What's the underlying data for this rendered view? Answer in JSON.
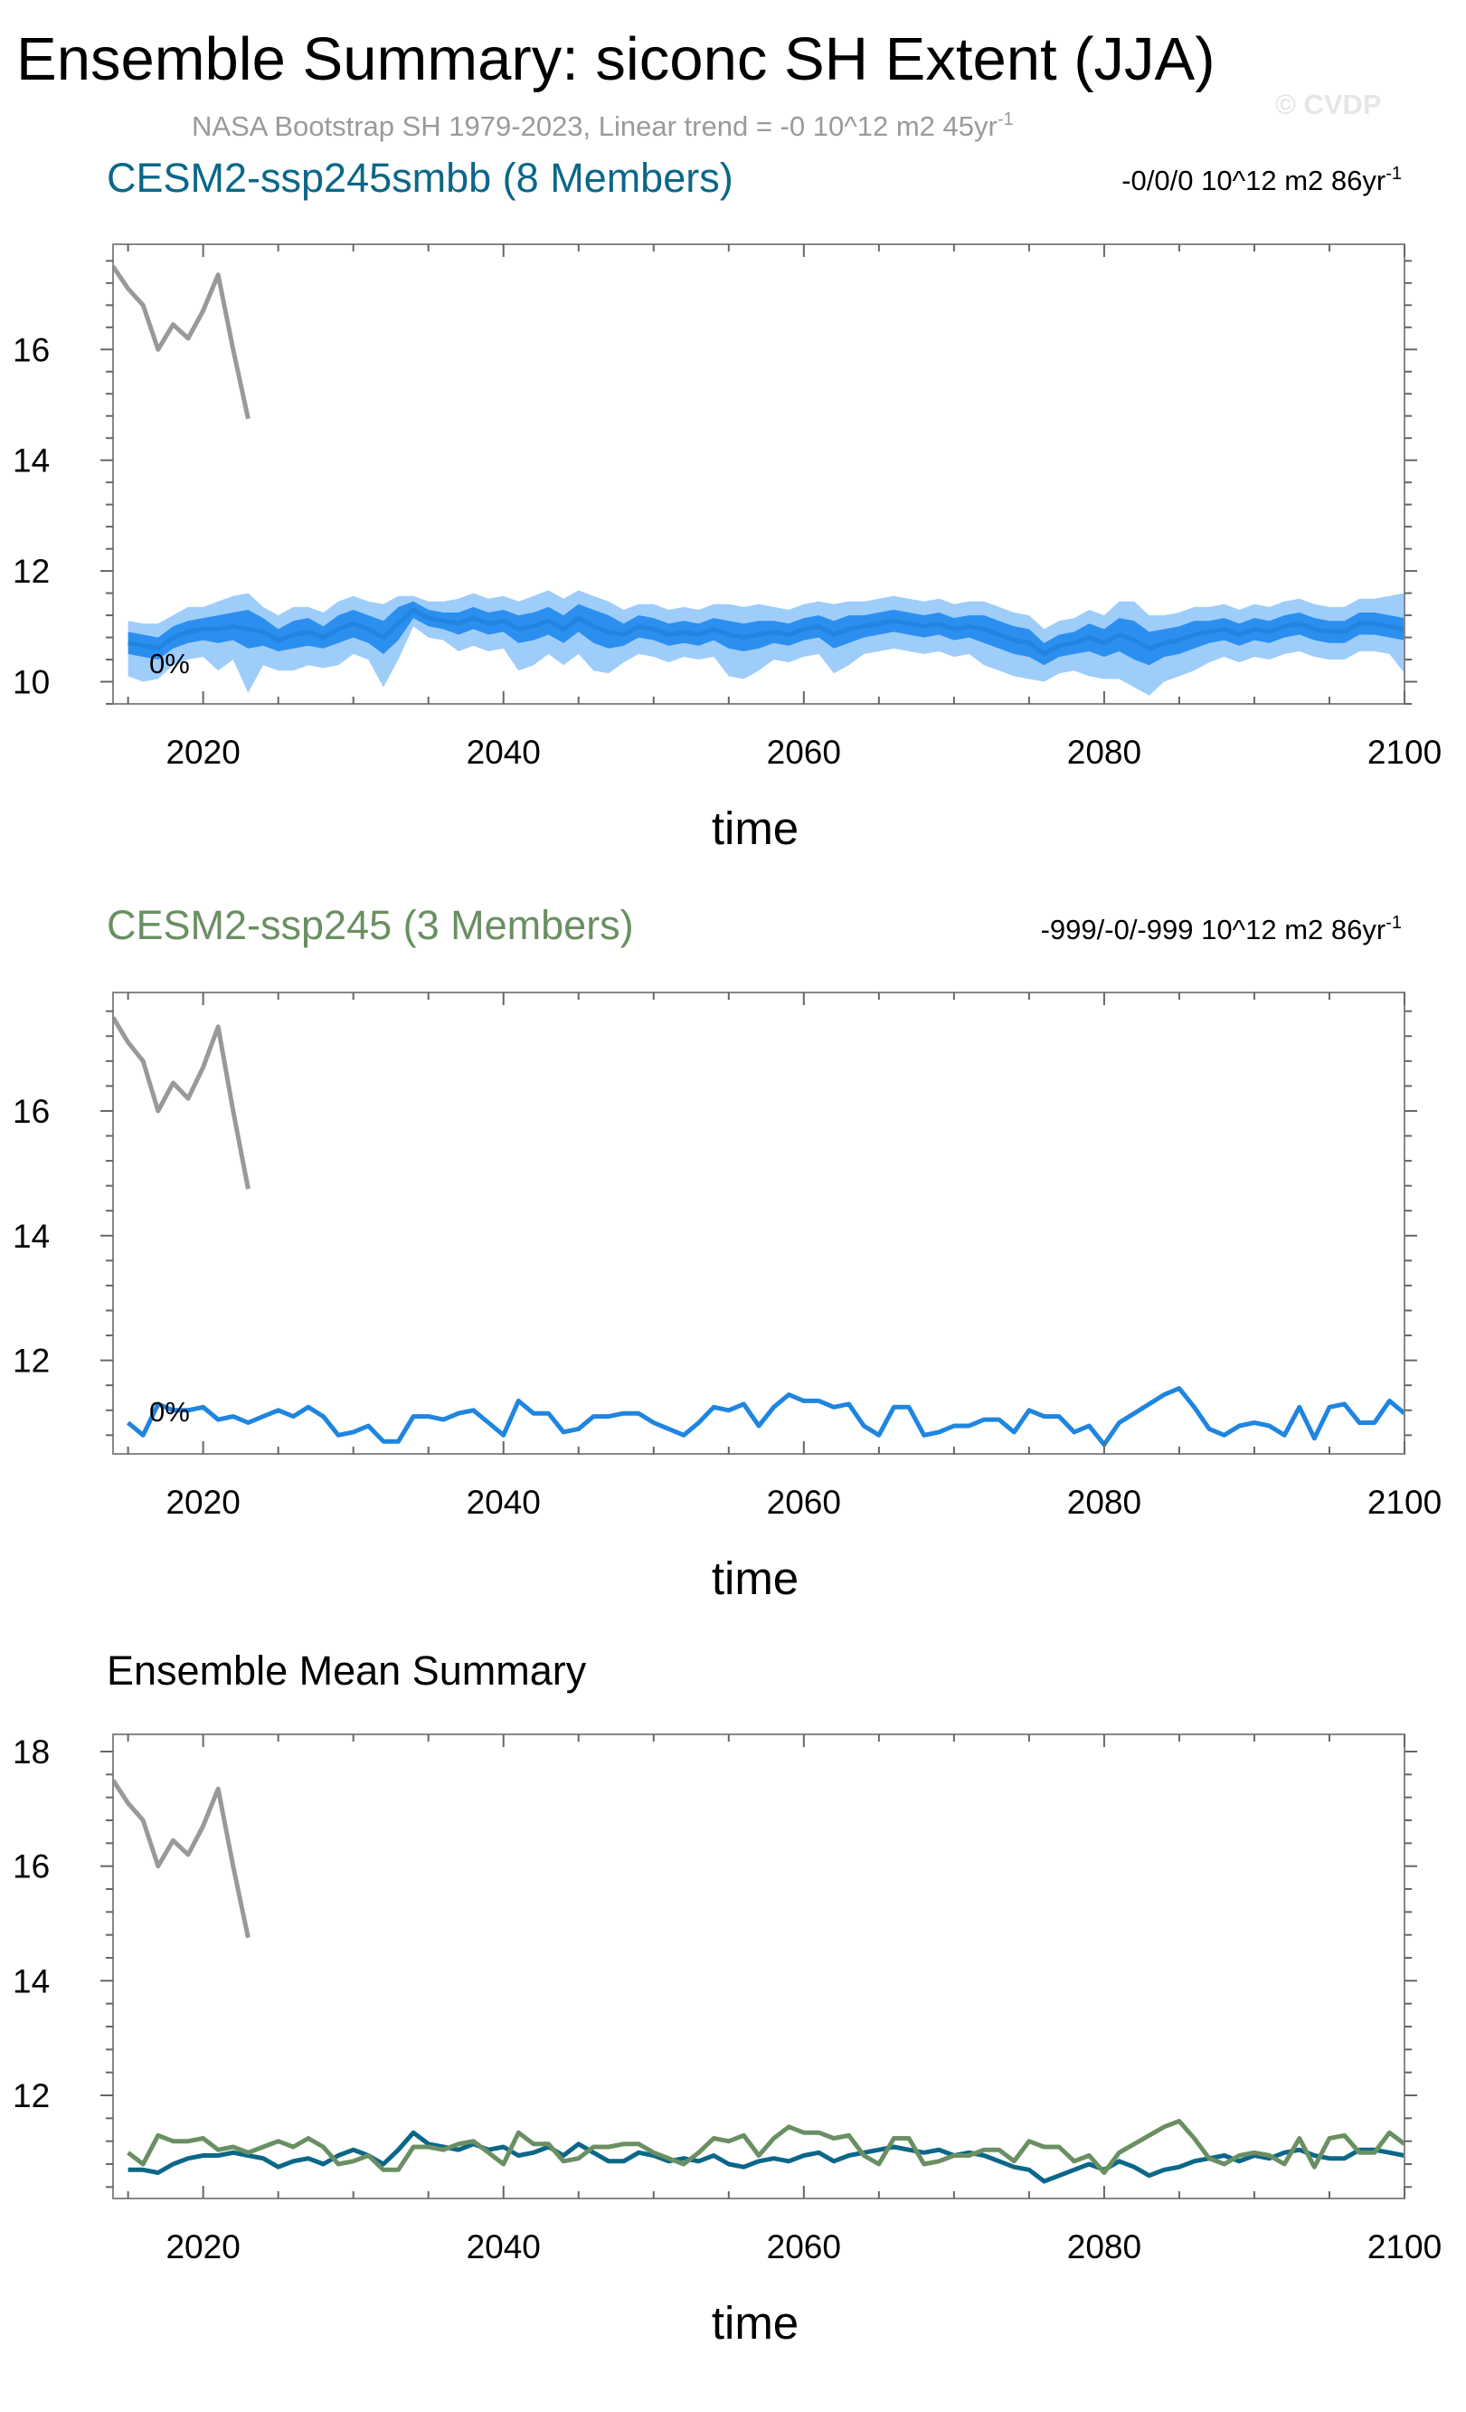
{
  "title": "Ensemble Summary: siconc SH Extent (JJA)",
  "subtitle": {
    "text": "NASA Bootstrap SH 1979-2023, Linear trend = -0 10^12 m2 45yr",
    "sup": "-1"
  },
  "watermark": "© CVDP",
  "colors": {
    "obs": "#999999",
    "model1": "#0b6788",
    "model2": "#6a8f62",
    "mean_line": "#1f85e0",
    "band_inner": "#2b8ff0",
    "band_outer": "#9fcdfa"
  },
  "chart_data": [
    {
      "type": "line",
      "title": "CESM2-ssp245smbb (8 Members)",
      "trend_label": {
        "text": "-0/0/0 10^12 m2 86yr",
        "sup": "-1"
      },
      "xlabel": "time",
      "xlim": [
        2014,
        2100
      ],
      "ylim": [
        9.6,
        17.9
      ],
      "xticks": [
        "2020",
        "2040",
        "2060",
        "2080",
        "2100"
      ],
      "yticks": [
        "10",
        "12",
        "14",
        "16"
      ],
      "annotation": "0%",
      "obs": {
        "x": [
          2014,
          2015,
          2016,
          2017,
          2018,
          2019,
          2020,
          2021,
          2022,
          2023
        ],
        "values": [
          17.5,
          17.1,
          16.8,
          16.0,
          16.45,
          16.2,
          16.7,
          17.35,
          16.0,
          14.75
        ]
      },
      "ensemble": {
        "x": [
          2015,
          2016,
          2017,
          2018,
          2019,
          2020,
          2021,
          2022,
          2023,
          2024,
          2025,
          2026,
          2027,
          2028,
          2029,
          2030,
          2031,
          2032,
          2033,
          2034,
          2035,
          2036,
          2037,
          2038,
          2039,
          2040,
          2041,
          2042,
          2043,
          2044,
          2045,
          2046,
          2047,
          2048,
          2049,
          2050,
          2051,
          2052,
          2053,
          2054,
          2055,
          2056,
          2057,
          2058,
          2059,
          2060,
          2061,
          2062,
          2063,
          2064,
          2065,
          2066,
          2067,
          2068,
          2069,
          2070,
          2071,
          2072,
          2073,
          2074,
          2075,
          2076,
          2077,
          2078,
          2079,
          2080,
          2081,
          2082,
          2083,
          2084,
          2085,
          2086,
          2087,
          2088,
          2089,
          2090,
          2091,
          2092,
          2093,
          2094,
          2095,
          2096,
          2097,
          2098,
          2099,
          2100
        ],
        "mean": [
          10.7,
          10.65,
          10.6,
          10.8,
          10.9,
          10.95,
          10.95,
          11.0,
          10.95,
          10.9,
          10.75,
          10.85,
          10.9,
          10.8,
          10.95,
          11.05,
          10.95,
          10.8,
          11.05,
          11.3,
          11.15,
          11.1,
          11.05,
          11.15,
          11.05,
          11.1,
          10.95,
          11.0,
          11.1,
          10.95,
          11.15,
          11.0,
          10.9,
          10.85,
          11.0,
          10.95,
          10.85,
          10.9,
          10.85,
          10.95,
          10.85,
          10.8,
          10.85,
          10.9,
          10.85,
          10.95,
          11.0,
          10.85,
          10.95,
          11.0,
          11.05,
          11.1,
          11.05,
          11.0,
          11.05,
          10.95,
          11.0,
          10.95,
          10.85,
          10.75,
          10.7,
          10.5,
          10.65,
          10.7,
          10.8,
          10.7,
          10.85,
          10.75,
          10.6,
          10.7,
          10.75,
          10.85,
          10.9,
          10.95,
          10.85,
          10.95,
          10.9,
          11.0,
          11.05,
          10.95,
          10.9,
          10.9,
          11.05,
          11.05,
          11.0,
          10.95
        ],
        "band_inner": {
          "lower": [
            10.5,
            10.45,
            10.4,
            10.6,
            10.7,
            10.75,
            10.7,
            10.75,
            10.6,
            10.65,
            10.55,
            10.6,
            10.65,
            10.6,
            10.7,
            10.8,
            10.7,
            10.5,
            10.75,
            11.15,
            11.0,
            10.95,
            10.85,
            10.95,
            10.85,
            10.9,
            10.7,
            10.75,
            10.85,
            10.7,
            10.9,
            10.7,
            10.6,
            10.65,
            10.8,
            10.75,
            10.65,
            10.7,
            10.65,
            10.75,
            10.6,
            10.55,
            10.6,
            10.7,
            10.65,
            10.75,
            10.8,
            10.6,
            10.7,
            10.8,
            10.85,
            10.9,
            10.85,
            10.8,
            10.85,
            10.75,
            10.8,
            10.7,
            10.6,
            10.5,
            10.45,
            10.3,
            10.45,
            10.5,
            10.55,
            10.45,
            10.55,
            10.4,
            10.3,
            10.45,
            10.5,
            10.6,
            10.7,
            10.75,
            10.65,
            10.75,
            10.7,
            10.8,
            10.85,
            10.75,
            10.7,
            10.7,
            10.85,
            10.85,
            10.8,
            10.75
          ],
          "upper": [
            10.9,
            10.85,
            10.8,
            11.0,
            11.1,
            11.15,
            11.2,
            11.25,
            11.3,
            11.15,
            10.95,
            11.1,
            11.15,
            11.0,
            11.2,
            11.3,
            11.2,
            11.1,
            11.35,
            11.45,
            11.3,
            11.25,
            11.25,
            11.35,
            11.25,
            11.3,
            11.2,
            11.25,
            11.35,
            11.2,
            11.4,
            11.3,
            11.2,
            11.05,
            11.2,
            11.15,
            11.05,
            11.1,
            11.05,
            11.15,
            11.1,
            11.05,
            11.1,
            11.1,
            11.05,
            11.15,
            11.2,
            11.1,
            11.2,
            11.2,
            11.25,
            11.3,
            11.25,
            11.2,
            11.25,
            11.15,
            11.2,
            11.2,
            11.1,
            11.0,
            10.95,
            10.7,
            10.85,
            10.9,
            11.05,
            10.95,
            11.15,
            11.1,
            10.9,
            10.95,
            11.0,
            11.1,
            11.1,
            11.15,
            11.05,
            11.15,
            11.1,
            11.2,
            11.25,
            11.15,
            11.1,
            11.1,
            11.25,
            11.25,
            11.2,
            11.15
          ]
        },
        "band_outer": {
          "lower": [
            10.1,
            10.0,
            10.05,
            10.3,
            10.4,
            10.45,
            10.2,
            10.4,
            9.8,
            10.3,
            10.2,
            10.2,
            10.3,
            10.25,
            10.3,
            10.5,
            10.4,
            9.9,
            10.4,
            11.0,
            10.8,
            10.75,
            10.55,
            10.65,
            10.55,
            10.6,
            10.2,
            10.3,
            10.5,
            10.3,
            10.5,
            10.2,
            10.15,
            10.35,
            10.5,
            10.45,
            10.35,
            10.45,
            10.4,
            10.45,
            10.1,
            10.05,
            10.2,
            10.4,
            10.35,
            10.45,
            10.5,
            10.15,
            10.3,
            10.5,
            10.55,
            10.6,
            10.55,
            10.5,
            10.55,
            10.45,
            10.5,
            10.3,
            10.2,
            10.1,
            10.05,
            10.0,
            10.15,
            10.2,
            10.1,
            10.05,
            10.05,
            9.9,
            9.75,
            10.0,
            10.1,
            10.2,
            10.35,
            10.45,
            10.35,
            10.45,
            10.4,
            10.5,
            10.55,
            10.45,
            10.4,
            10.4,
            10.55,
            10.55,
            10.5,
            10.15
          ],
          "upper": [
            11.1,
            11.05,
            11.05,
            11.2,
            11.35,
            11.35,
            11.45,
            11.55,
            11.6,
            11.35,
            11.2,
            11.35,
            11.35,
            11.25,
            11.45,
            11.55,
            11.45,
            11.4,
            11.55,
            11.55,
            11.45,
            11.45,
            11.5,
            11.6,
            11.5,
            11.55,
            11.45,
            11.55,
            11.65,
            11.5,
            11.65,
            11.55,
            11.45,
            11.3,
            11.4,
            11.4,
            11.3,
            11.35,
            11.3,
            11.4,
            11.4,
            11.35,
            11.4,
            11.35,
            11.3,
            11.4,
            11.45,
            11.4,
            11.45,
            11.45,
            11.5,
            11.55,
            11.5,
            11.45,
            11.5,
            11.4,
            11.45,
            11.45,
            11.35,
            11.25,
            11.2,
            10.95,
            11.1,
            11.15,
            11.3,
            11.2,
            11.45,
            11.45,
            11.2,
            11.2,
            11.25,
            11.35,
            11.35,
            11.4,
            11.3,
            11.4,
            11.35,
            11.45,
            11.5,
            11.4,
            11.35,
            11.35,
            11.5,
            11.5,
            11.55,
            11.6
          ]
        }
      }
    },
    {
      "type": "line",
      "title": "CESM2-ssp245 (3 Members)",
      "trend_label": {
        "text": "-999/-0/-999 10^12 m2 86yr",
        "sup": "-1"
      },
      "xlabel": "time",
      "xlim": [
        2014,
        2100
      ],
      "ylim": [
        10.5,
        17.9
      ],
      "xticks": [
        "2020",
        "2040",
        "2060",
        "2080",
        "2100"
      ],
      "yticks": [
        "12",
        "14",
        "16"
      ],
      "annotation": "0%",
      "obs": {
        "x": [
          2014,
          2015,
          2016,
          2017,
          2018,
          2019,
          2020,
          2021,
          2022,
          2023
        ],
        "values": [
          17.5,
          17.1,
          16.8,
          16.0,
          16.45,
          16.2,
          16.7,
          17.35,
          16.0,
          14.75
        ]
      },
      "member": {
        "x": [
          2015,
          2016,
          2017,
          2018,
          2019,
          2020,
          2021,
          2022,
          2023,
          2024,
          2025,
          2026,
          2027,
          2028,
          2029,
          2030,
          2031,
          2032,
          2033,
          2034,
          2035,
          2036,
          2037,
          2038,
          2039,
          2040,
          2041,
          2042,
          2043,
          2044,
          2045,
          2046,
          2047,
          2048,
          2049,
          2050,
          2051,
          2052,
          2053,
          2054,
          2055,
          2056,
          2057,
          2058,
          2059,
          2060,
          2061,
          2062,
          2063,
          2064,
          2065,
          2066,
          2067,
          2068,
          2069,
          2070,
          2071,
          2072,
          2073,
          2074,
          2075,
          2076,
          2077,
          2078,
          2079,
          2080,
          2081,
          2082,
          2083,
          2084,
          2085,
          2086,
          2087,
          2088,
          2089,
          2090,
          2091,
          2092,
          2093,
          2094,
          2095,
          2096,
          2097,
          2098,
          2099,
          2100
        ],
        "values": [
          11.0,
          10.8,
          11.3,
          11.2,
          11.2,
          11.25,
          11.05,
          11.1,
          11.0,
          11.1,
          11.2,
          11.1,
          11.25,
          11.1,
          10.8,
          10.85,
          10.95,
          10.7,
          10.7,
          11.1,
          11.1,
          11.05,
          11.15,
          11.2,
          11.0,
          10.8,
          11.35,
          11.15,
          11.15,
          10.85,
          10.9,
          11.1,
          11.1,
          11.15,
          11.15,
          11.0,
          10.9,
          10.8,
          11.0,
          11.25,
          11.2,
          11.3,
          10.95,
          11.25,
          11.45,
          11.35,
          11.35,
          11.25,
          11.3,
          10.95,
          10.8,
          11.25,
          11.25,
          10.8,
          10.85,
          10.95,
          10.95,
          11.05,
          11.05,
          10.85,
          11.2,
          11.1,
          11.1,
          10.85,
          10.95,
          10.65,
          11.0,
          11.15,
          11.3,
          11.45,
          11.55,
          11.25,
          10.9,
          10.8,
          10.95,
          11.0,
          10.95,
          10.8,
          11.25,
          10.75,
          11.25,
          11.3,
          11.0,
          11.0,
          11.35,
          11.15
        ]
      }
    },
    {
      "type": "line",
      "title": "Ensemble Mean Summary",
      "xlabel": "time",
      "xlim": [
        2014,
        2100
      ],
      "ylim": [
        10.2,
        18.3
      ],
      "xticks": [
        "2020",
        "2040",
        "2060",
        "2080",
        "2100"
      ],
      "yticks": [
        "12",
        "14",
        "16",
        "18"
      ],
      "series": [
        {
          "name": "CESM2-ssp245smbb",
          "values": [
            10.7,
            10.7,
            10.65,
            10.8,
            10.9,
            10.95,
            10.95,
            11.0,
            10.95,
            10.9,
            10.75,
            10.85,
            10.9,
            10.8,
            10.95,
            11.05,
            10.95,
            10.8,
            11.05,
            11.35,
            11.15,
            11.1,
            11.05,
            11.15,
            11.05,
            11.1,
            10.95,
            11.0,
            11.1,
            10.95,
            11.15,
            11.0,
            10.85,
            10.85,
            11.0,
            10.95,
            10.85,
            10.9,
            10.85,
            10.95,
            10.8,
            10.75,
            10.85,
            10.9,
            10.85,
            10.95,
            11.0,
            10.85,
            10.95,
            11.0,
            11.05,
            11.1,
            11.05,
            11.0,
            11.05,
            10.95,
            11.0,
            10.95,
            10.85,
            10.75,
            10.7,
            10.5,
            10.6,
            10.7,
            10.8,
            10.7,
            10.85,
            10.75,
            10.6,
            10.7,
            10.75,
            10.85,
            10.9,
            10.95,
            10.85,
            10.95,
            10.9,
            11.0,
            11.05,
            10.95,
            10.9,
            10.9,
            11.05,
            11.05,
            11.0,
            10.95
          ]
        },
        {
          "name": "CESM2-ssp245",
          "values": [
            11.0,
            10.8,
            11.3,
            11.2,
            11.2,
            11.25,
            11.05,
            11.1,
            11.0,
            11.1,
            11.2,
            11.1,
            11.25,
            11.1,
            10.8,
            10.85,
            10.95,
            10.7,
            10.7,
            11.1,
            11.1,
            11.05,
            11.15,
            11.2,
            11.0,
            10.8,
            11.35,
            11.15,
            11.15,
            10.85,
            10.9,
            11.1,
            11.1,
            11.15,
            11.15,
            11.0,
            10.9,
            10.8,
            11.0,
            11.25,
            11.2,
            11.3,
            10.95,
            11.25,
            11.45,
            11.35,
            11.35,
            11.25,
            11.3,
            10.95,
            10.8,
            11.25,
            11.25,
            10.8,
            10.85,
            10.95,
            10.95,
            11.05,
            11.05,
            10.85,
            11.2,
            11.1,
            11.1,
            10.85,
            10.95,
            10.65,
            11.0,
            11.15,
            11.3,
            11.45,
            11.55,
            11.25,
            10.9,
            10.8,
            10.95,
            11.0,
            10.95,
            10.8,
            11.25,
            10.75,
            11.25,
            11.3,
            11.0,
            11.0,
            11.35,
            11.15
          ]
        }
      ],
      "obs": {
        "x": [
          2014,
          2015,
          2016,
          2017,
          2018,
          2019,
          2020,
          2021,
          2022,
          2023
        ],
        "values": [
          17.5,
          17.1,
          16.8,
          16.0,
          16.45,
          16.2,
          16.7,
          17.35,
          16.0,
          14.75
        ]
      }
    }
  ]
}
